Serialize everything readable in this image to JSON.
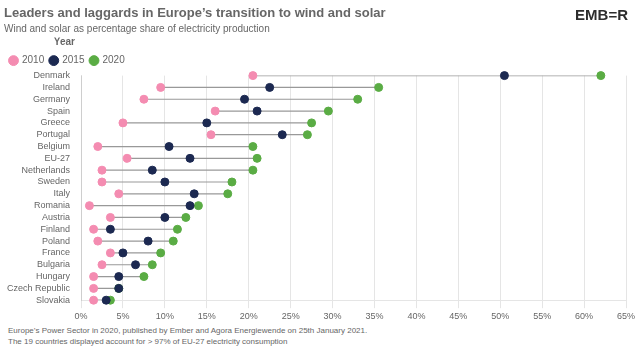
{
  "chart_data": {
    "type": "dumbbell",
    "orientation": "horizontal",
    "title": "Leaders and laggards in Europe’s transition to wind and solar",
    "subtitle": "Wind and solar as percentage share of electricity production",
    "legend_title": "Year",
    "annotations": [
      "EMB=R"
    ],
    "footnotes": [
      "Europe’s Power Sector in 2020, published by Ember and Agora Energiewende on 25th January 2021.",
      "The 19 countries displayed account for > 97% of EU-27 electricity consumption"
    ],
    "categories": [
      "Denmark",
      "Ireland",
      "Germany",
      "Spain",
      "Greece",
      "Portugal",
      "Belgium",
      "EU-27",
      "Netherlands",
      "Sweden",
      "Italy",
      "Romania",
      "Austria",
      "Finland",
      "Poland",
      "France",
      "Bulgaria",
      "Hungary",
      "Czech Republic",
      "Slovakia"
    ],
    "series": [
      {
        "name": "2010",
        "color": "#f48cb1",
        "values": [
          20.5,
          9.5,
          7.5,
          16.0,
          5.0,
          15.5,
          2.0,
          5.5,
          2.5,
          2.5,
          4.5,
          1.0,
          3.5,
          1.5,
          2.0,
          3.5,
          2.5,
          1.5,
          1.5,
          1.5
        ]
      },
      {
        "name": "2015",
        "color": "#1c2951",
        "values": [
          50.5,
          22.5,
          19.5,
          21.0,
          15.0,
          24.0,
          10.5,
          13.0,
          8.5,
          10.0,
          13.5,
          13.0,
          10.0,
          3.5,
          8.0,
          5.0,
          6.5,
          4.5,
          4.5,
          3.0
        ]
      },
      {
        "name": "2020",
        "color": "#5aac44",
        "values": [
          62.0,
          35.5,
          33.0,
          29.5,
          27.5,
          27.0,
          20.5,
          21.0,
          20.5,
          18.0,
          17.5,
          14.0,
          12.5,
          11.5,
          11.0,
          9.5,
          8.5,
          7.5,
          4.5,
          3.5
        ]
      }
    ],
    "xlim": [
      0,
      65
    ],
    "xticks": [
      {
        "value": 0,
        "label": "0%"
      },
      {
        "value": 5,
        "label": "5%"
      },
      {
        "value": 10,
        "label": "10%"
      },
      {
        "value": 15,
        "label": "15%"
      },
      {
        "value": 20,
        "label": "20%"
      },
      {
        "value": 25,
        "label": "25%"
      },
      {
        "value": 30,
        "label": "30%"
      },
      {
        "value": 35,
        "label": "35%"
      },
      {
        "value": 40,
        "label": "40%"
      },
      {
        "value": 45,
        "label": "45%"
      },
      {
        "value": 50,
        "label": "50%"
      },
      {
        "value": 55,
        "label": "55%"
      },
      {
        "value": 60,
        "label": "60%"
      },
      {
        "value": 65,
        "label": "65%"
      }
    ],
    "grid": true,
    "legend": "upper left"
  }
}
